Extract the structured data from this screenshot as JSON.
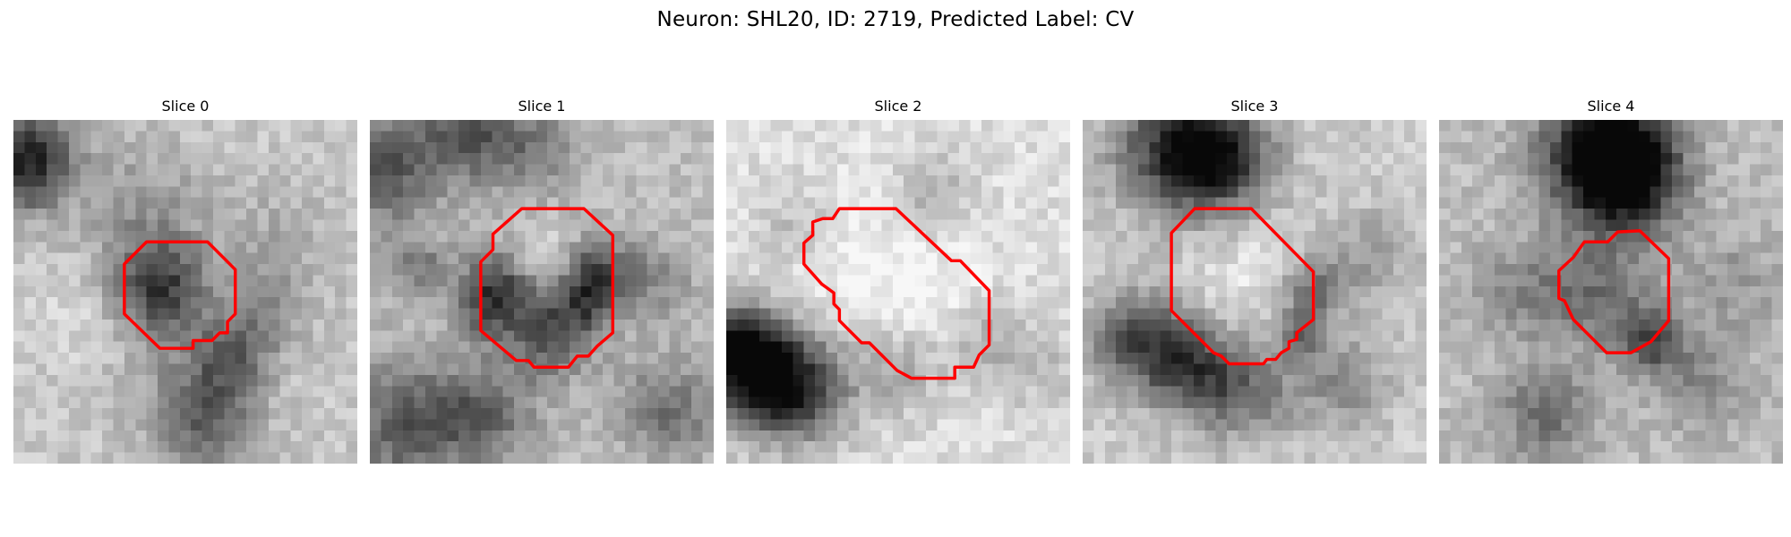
{
  "figure": {
    "title": "Neuron: SHL20, ID: 2719, Predicted Label: CV",
    "outline_color": "#ff0000"
  },
  "slices": [
    {
      "label": "Slice 0"
    },
    {
      "label": "Slice 1"
    },
    {
      "label": "Slice 2"
    },
    {
      "label": "Slice 3"
    },
    {
      "label": "Slice 4"
    }
  ]
}
